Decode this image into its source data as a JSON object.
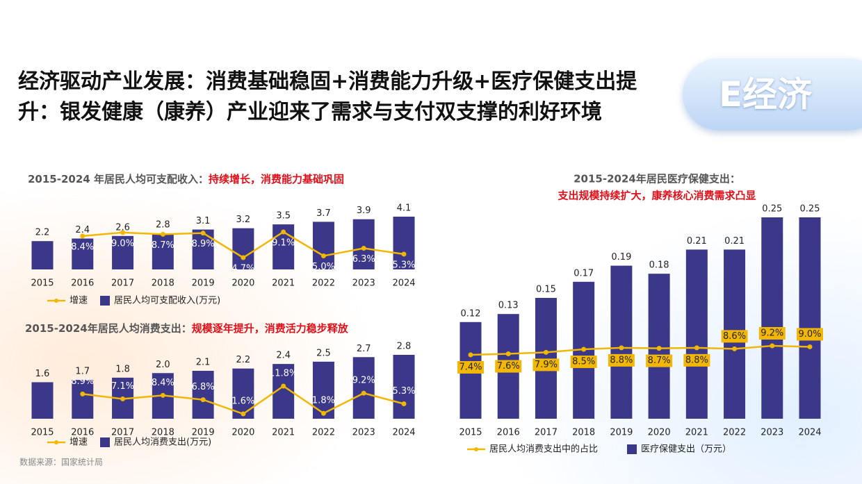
{
  "title": "经济驱动产业发展：消费基础稳固+消费能力升级+医疗保健支出提升：银发健康（康养）产业迎来了需求与支付双支撑的利好环境",
  "badge": "E经济",
  "source": "数据来源：国家统计局",
  "chart_data": [
    {
      "type": "combo",
      "title": "2015-2024 年居民人均可支配收入：",
      "subtitle": "持续增长，消费能力基础巩固",
      "categories": [
        "2015",
        "2016",
        "2017",
        "2018",
        "2019",
        "2020",
        "2021",
        "2022",
        "2023",
        "2024"
      ],
      "series": [
        {
          "name": "增速",
          "type": "line",
          "axis": "y2",
          "color": "#f2b705",
          "values": [
            null,
            8.4,
            9.0,
            8.7,
            8.9,
            4.7,
            9.1,
            5.0,
            6.3,
            5.3
          ],
          "value_labels": [
            null,
            "8.4%",
            "9.0%",
            "8.7%",
            "8.9%",
            "4.7%",
            "9.1%",
            "5.0%",
            "6.3%",
            "5.3%"
          ]
        },
        {
          "name": "居民人均可支配收入(万元)",
          "type": "bar",
          "color": "#3b3889",
          "values": [
            2.2,
            2.4,
            2.6,
            2.8,
            3.1,
            3.2,
            3.5,
            3.7,
            3.9,
            4.1
          ],
          "value_labels": [
            "2.2",
            "2.4",
            "2.6",
            "2.8",
            "3.1",
            "3.2",
            "3.5",
            "3.7",
            "3.9",
            "4.1"
          ]
        }
      ]
    },
    {
      "type": "combo",
      "title": "2015-2024年居民人均消费支出：",
      "subtitle": "规模逐年提升，消费活力稳步释放",
      "categories": [
        "2015",
        "2016",
        "2017",
        "2018",
        "2019",
        "2020",
        "2021",
        "2022",
        "2023",
        "2024"
      ],
      "series": [
        {
          "name": "增速",
          "type": "line",
          "axis": "y2",
          "color": "#f2b705",
          "values": [
            null,
            8.9,
            7.1,
            8.4,
            6.8,
            1.6,
            11.8,
            1.8,
            9.2,
            5.3
          ],
          "value_labels": [
            null,
            "8.9%",
            "7.1%",
            "8.4%",
            "6.8%",
            "1.6%",
            "11.8%",
            "1.8%",
            "9.2%",
            "5.3%"
          ]
        },
        {
          "name": "居民人均消费支出(万元)",
          "type": "bar",
          "color": "#3b3889",
          "values": [
            1.6,
            1.7,
            1.8,
            2.0,
            2.1,
            2.2,
            2.4,
            2.5,
            2.7,
            2.8
          ],
          "value_labels": [
            "1.6",
            "1.7",
            "1.8",
            "2.0",
            "2.1",
            "2.2",
            "2.4",
            "2.5",
            "2.7",
            "2.8"
          ]
        }
      ]
    },
    {
      "type": "combo",
      "title": "2015-2024年居民医疗保健支出：",
      "subtitle": "支出规模持续扩大，康养核心消费需求凸显",
      "categories": [
        "2015",
        "2016",
        "2017",
        "2018",
        "2019",
        "2020",
        "2021",
        "2022",
        "2023",
        "2024"
      ],
      "series": [
        {
          "name": "居民人均消费支出中的占比",
          "type": "line",
          "axis": "y2",
          "color": "#f2b705",
          "values": [
            7.4,
            7.6,
            7.9,
            8.5,
            8.8,
            8.7,
            8.8,
            8.6,
            9.2,
            9.0
          ],
          "value_labels": [
            "7.4%",
            "7.6%",
            "7.9%",
            "8.5%",
            "8.8%",
            "8.7%",
            "8.8%",
            "8.6%",
            "9.2%",
            "9.0%"
          ]
        },
        {
          "name": "医疗保健支出（万元）",
          "type": "bar",
          "color": "#3b3889",
          "values": [
            0.12,
            0.13,
            0.15,
            0.17,
            0.19,
            0.18,
            0.21,
            0.21,
            0.25,
            0.25
          ],
          "value_labels": [
            "0.12",
            "0.13",
            "0.15",
            "0.17",
            "0.19",
            "0.18",
            "0.21",
            "0.21",
            "0.25",
            "0.25"
          ]
        }
      ]
    }
  ]
}
